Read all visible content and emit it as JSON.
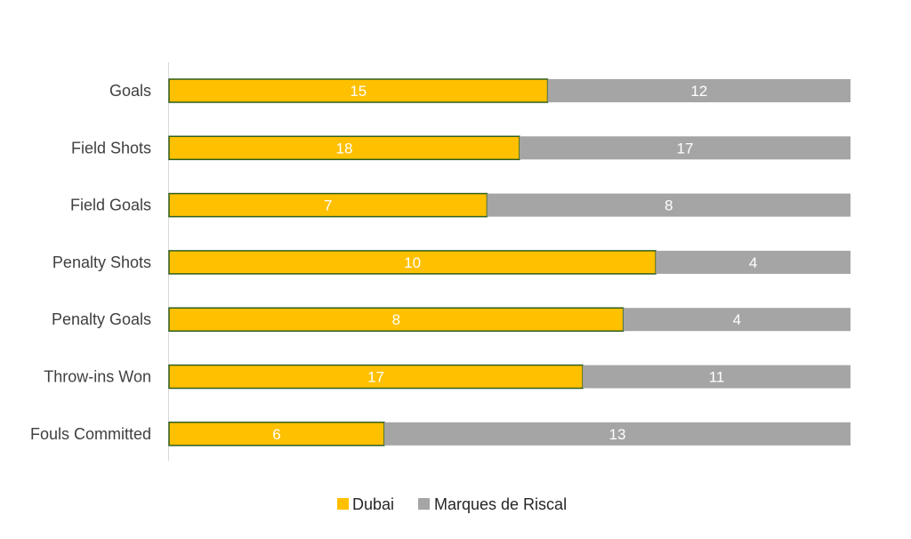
{
  "chart_data": {
    "type": "bar",
    "orientation": "horizontal",
    "stacking": "percent",
    "categories": [
      "Goals",
      "Field Shots",
      "Field Goals",
      "Penalty Shots",
      "Penalty Goals",
      "Throw-ins Won",
      "Fouls Committed"
    ],
    "series": [
      {
        "name": "Dubai",
        "values": [
          15,
          18,
          7,
          10,
          8,
          17,
          6
        ],
        "color": "#FFC000",
        "border": "#2E5E1E"
      },
      {
        "name": "Marques de Riscal",
        "values": [
          12,
          17,
          8,
          4,
          4,
          11,
          13
        ],
        "color": "#A5A5A5"
      }
    ],
    "legend": "bottom",
    "grid": false
  }
}
